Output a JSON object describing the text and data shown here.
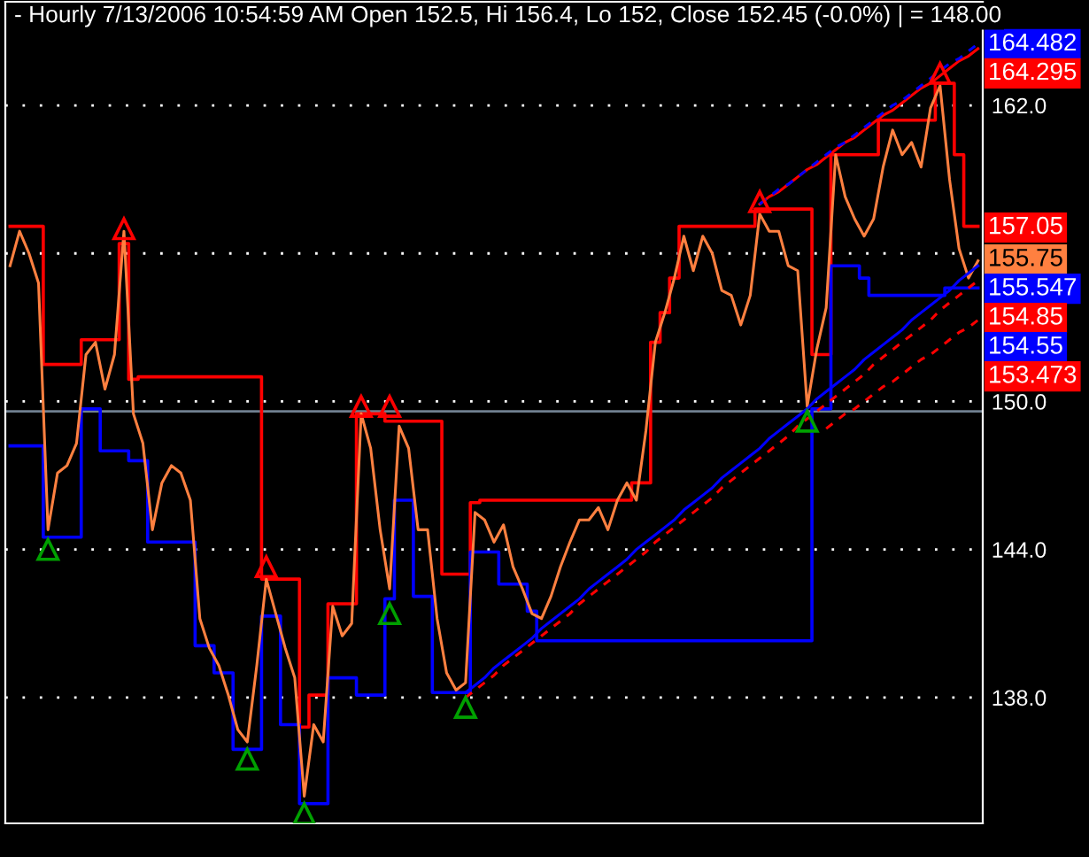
{
  "chart_data": {
    "type": "step",
    "title": "- Hourly 7/13/2006 10:54:59 AM Open 152.5, Hi 156.4, Lo 152, Close 152.45 (-0.0%) | = 148.00",
    "categories": [
      null,
      null,
      null,
      null,
      null,
      null,
      null,
      null,
      null,
      null,
      null,
      null,
      null,
      null,
      null,
      null,
      null,
      null,
      null,
      null,
      null,
      null,
      null,
      null,
      null,
      null,
      null,
      null,
      null,
      null,
      null,
      null,
      null,
      null,
      null,
      null,
      null,
      null,
      null,
      null,
      null,
      null,
      null,
      null,
      null,
      null,
      null,
      null,
      null,
      null,
      null,
      null,
      null,
      null,
      null,
      null,
      null,
      null,
      null,
      null,
      null,
      null,
      null,
      null,
      null,
      null,
      null,
      null,
      null,
      null,
      null,
      null,
      null,
      null,
      null,
      null,
      null,
      null,
      null,
      null,
      null,
      null,
      null,
      null,
      null,
      null,
      null,
      null,
      null,
      null,
      null,
      null,
      null,
      null,
      null,
      null,
      null,
      null,
      null,
      null,
      null,
      null,
      null
    ],
    "series": [
      {
        "color": "#ff0000",
        "values": [
          157.1,
          157.1,
          157.1,
          157.1,
          151.5,
          151.5,
          151.5,
          151.5,
          152.5,
          152.5,
          152.5,
          152.5,
          156.4,
          150.9,
          151.0,
          151.0,
          151.0,
          151.0,
          151.0,
          151.0,
          151.0,
          151.0,
          151.0,
          151.0,
          151.0,
          151.0,
          151.0,
          142.8,
          142.8,
          142.8,
          142.8,
          136.8,
          138.1,
          138.1,
          141.8,
          141.8,
          141.8,
          149.5,
          149.5,
          149.5,
          149.2,
          149.2,
          149.2,
          149.2,
          149.2,
          149.2,
          143.0,
          143.0,
          143.0,
          145.9,
          146.0,
          146.0,
          146.0,
          146.0,
          146.0,
          146.0,
          146.0,
          146.0,
          146.0,
          146.0,
          146.0,
          146.0,
          146.0,
          146.0,
          146.0,
          146.0,
          146.7,
          146.7,
          152.4,
          153.6,
          155.0,
          157.1,
          157.1,
          157.1,
          157.1,
          157.1,
          157.1,
          157.1,
          157.1,
          157.8,
          157.8,
          157.8,
          157.8,
          157.8,
          157.8,
          151.9,
          151.9,
          160.0,
          160.0,
          160.0,
          160.0,
          160.0,
          161.4,
          161.4,
          161.4,
          161.4,
          161.4,
          161.4,
          162.9,
          162.9,
          160.0,
          157.1,
          157.1
        ]
      },
      {
        "color": "#0000ff",
        "values": [
          148.2,
          148.2,
          148.2,
          148.2,
          144.5,
          144.5,
          144.5,
          144.5,
          149.7,
          149.7,
          148.0,
          148.0,
          148.0,
          147.6,
          147.6,
          144.3,
          144.3,
          144.3,
          144.3,
          144.3,
          140.1,
          140.1,
          139.0,
          139.0,
          135.9,
          135.9,
          135.9,
          141.3,
          141.3,
          136.9,
          136.9,
          133.7,
          133.7,
          133.7,
          138.8,
          138.8,
          138.8,
          138.1,
          138.1,
          138.1,
          142.0,
          146.0,
          146.0,
          142.1,
          142.1,
          138.2,
          138.2,
          138.2,
          138.2,
          143.9,
          143.9,
          143.9,
          142.6,
          142.6,
          142.6,
          141.5,
          140.3,
          140.3,
          140.3,
          140.3,
          140.3,
          140.3,
          140.3,
          140.3,
          140.3,
          140.3,
          140.3,
          140.3,
          140.3,
          140.3,
          140.3,
          140.3,
          140.3,
          140.3,
          140.3,
          140.3,
          140.3,
          140.3,
          140.3,
          140.3,
          140.3,
          140.3,
          140.3,
          140.3,
          140.3,
          149.7,
          149.7,
          155.5,
          155.5,
          155.5,
          155.0,
          154.3,
          154.3,
          154.3,
          154.3,
          154.3,
          154.3,
          154.3,
          154.3,
          154.6,
          154.6,
          154.6,
          154.6
        ]
      },
      {
        "type": "line",
        "color": "#ff8040",
        "values": [
          155.5,
          156.9,
          156.0,
          154.8,
          144.8,
          147.1,
          147.4,
          148.3,
          151.9,
          152.4,
          150.5,
          151.9,
          156.9,
          149.5,
          148.3,
          144.8,
          146.7,
          147.4,
          147.1,
          146.0,
          141.2,
          140.0,
          139.3,
          138.1,
          136.7,
          136.2,
          139.3,
          142.8,
          141.4,
          140.0,
          138.8,
          134.0,
          136.9,
          136.2,
          141.7,
          140.5,
          141.0,
          149.5,
          148.1,
          144.8,
          142.4,
          149.0,
          148.1,
          144.8,
          144.8,
          141.2,
          139.0,
          138.3,
          138.6,
          145.5,
          145.2,
          144.3,
          145.0,
          143.3,
          142.4,
          141.4,
          141.2,
          142.1,
          143.3,
          144.3,
          145.2,
          145.2,
          145.7,
          144.8,
          146.0,
          146.7,
          146.0,
          148.8,
          152.4,
          153.6,
          155.0,
          156.7,
          155.3,
          156.7,
          156.0,
          154.5,
          154.3,
          153.1,
          154.3,
          157.6,
          156.9,
          156.9,
          155.5,
          155.3,
          149.8,
          152.1,
          153.8,
          160.0,
          158.3,
          157.4,
          156.7,
          157.4,
          159.5,
          161.0,
          160.0,
          160.5,
          159.5,
          161.9,
          162.8,
          159.0,
          156.2,
          155.0,
          155.7
        ]
      },
      {
        "type": "line",
        "color": "#0000ff",
        "values": [
          null,
          null,
          null,
          null,
          null,
          null,
          null,
          null,
          null,
          null,
          null,
          null,
          null,
          null,
          null,
          null,
          null,
          null,
          null,
          null,
          null,
          null,
          null,
          null,
          null,
          null,
          null,
          null,
          null,
          null,
          null,
          null,
          null,
          null,
          null,
          null,
          null,
          null,
          null,
          null,
          null,
          null,
          null,
          null,
          null,
          null,
          null,
          null,
          138.2,
          138.5,
          138.8,
          139.2,
          139.5,
          139.8,
          140.1,
          140.4,
          140.8,
          141.1,
          141.4,
          141.7,
          142.0,
          142.4,
          142.7,
          143.0,
          143.3,
          143.6,
          144.0,
          144.3,
          144.6,
          144.9,
          145.2,
          145.6,
          145.9,
          146.2,
          146.5,
          146.9,
          147.2,
          147.5,
          147.8,
          148.1,
          148.5,
          148.8,
          149.1,
          149.4,
          149.7,
          150.1,
          150.4,
          150.7,
          151.0,
          151.3,
          151.7,
          152.0,
          152.3,
          152.6,
          152.9,
          153.3,
          153.6,
          153.9,
          154.2,
          154.5,
          154.9,
          155.2,
          155.5
        ]
      },
      {
        "type": "line",
        "color": "#ff0000",
        "line_style": "dashed",
        "values": [
          null,
          null,
          null,
          null,
          null,
          null,
          null,
          null,
          null,
          null,
          null,
          null,
          null,
          null,
          null,
          null,
          null,
          null,
          null,
          null,
          null,
          null,
          null,
          null,
          null,
          null,
          null,
          null,
          null,
          null,
          null,
          null,
          null,
          null,
          null,
          null,
          null,
          null,
          null,
          null,
          null,
          null,
          null,
          null,
          null,
          null,
          null,
          null,
          138.0,
          138.3,
          138.6,
          138.9,
          139.3,
          139.6,
          139.9,
          140.2,
          140.5,
          140.8,
          141.1,
          141.4,
          141.8,
          142.1,
          142.4,
          142.7,
          143.0,
          143.3,
          143.6,
          143.9,
          144.3,
          144.6,
          144.9,
          145.2,
          145.5,
          145.8,
          146.1,
          146.5,
          146.8,
          147.1,
          147.4,
          147.7,
          148.0,
          148.3,
          148.6,
          149.0,
          149.3,
          149.6,
          149.9,
          150.2,
          150.5,
          150.8,
          151.1,
          151.5,
          151.8,
          152.1,
          152.4,
          152.7,
          153.0,
          153.3,
          153.7,
          154.0,
          154.3,
          154.6,
          154.9
        ]
      },
      {
        "type": "line",
        "color": "#ff0000",
        "line_style": "dashed",
        "values": [
          null,
          null,
          null,
          null,
          null,
          null,
          null,
          null,
          null,
          null,
          null,
          null,
          null,
          null,
          null,
          null,
          null,
          null,
          null,
          null,
          null,
          null,
          null,
          null,
          null,
          null,
          null,
          null,
          null,
          null,
          null,
          null,
          null,
          null,
          null,
          null,
          null,
          null,
          null,
          null,
          null,
          null,
          null,
          null,
          null,
          null,
          null,
          null,
          null,
          null,
          null,
          null,
          null,
          null,
          null,
          null,
          null,
          null,
          null,
          null,
          null,
          null,
          null,
          null,
          null,
          null,
          null,
          null,
          null,
          null,
          null,
          null,
          null,
          null,
          null,
          null,
          null,
          null,
          null,
          null,
          null,
          null,
          null,
          null,
          null,
          null,
          148.9,
          149.2,
          149.5,
          149.7,
          150.0,
          150.3,
          150.6,
          150.8,
          151.1,
          151.4,
          151.7,
          151.9,
          152.2,
          152.5,
          152.8,
          153.0,
          153.3
        ]
      },
      {
        "type": "line",
        "color": "#ff0000",
        "values": [
          null,
          null,
          null,
          null,
          null,
          null,
          null,
          null,
          null,
          null,
          null,
          null,
          null,
          null,
          null,
          null,
          null,
          null,
          null,
          null,
          null,
          null,
          null,
          null,
          null,
          null,
          null,
          null,
          null,
          null,
          null,
          null,
          null,
          null,
          null,
          null,
          null,
          null,
          null,
          null,
          null,
          null,
          null,
          null,
          null,
          null,
          null,
          null,
          null,
          null,
          null,
          null,
          null,
          null,
          null,
          null,
          null,
          null,
          null,
          null,
          null,
          null,
          null,
          null,
          null,
          null,
          null,
          null,
          null,
          null,
          null,
          null,
          null,
          null,
          null,
          null,
          null,
          null,
          null,
          158.0,
          158.3,
          158.5,
          158.8,
          159.1,
          159.4,
          159.6,
          159.9,
          160.2,
          160.5,
          160.7,
          161.0,
          161.3,
          161.6,
          161.8,
          162.1,
          162.4,
          162.7,
          162.9,
          163.2,
          163.5,
          163.8,
          164.0,
          164.3
        ]
      },
      {
        "type": "line",
        "color": "#0000ff",
        "line_style": "dashed",
        "values": [
          null,
          null,
          null,
          null,
          null,
          null,
          null,
          null,
          null,
          null,
          null,
          null,
          null,
          null,
          null,
          null,
          null,
          null,
          null,
          null,
          null,
          null,
          null,
          null,
          null,
          null,
          null,
          null,
          null,
          null,
          null,
          null,
          null,
          null,
          null,
          null,
          null,
          null,
          null,
          null,
          null,
          null,
          null,
          null,
          null,
          null,
          null,
          null,
          null,
          null,
          null,
          null,
          null,
          null,
          null,
          null,
          null,
          null,
          null,
          null,
          null,
          null,
          null,
          null,
          null,
          null,
          null,
          null,
          null,
          null,
          null,
          null,
          null,
          null,
          null,
          null,
          null,
          null,
          null,
          158.0,
          158.3,
          158.6,
          158.8,
          159.1,
          159.4,
          159.7,
          160.0,
          160.3,
          160.5,
          160.8,
          161.1,
          161.4,
          161.7,
          162.0,
          162.2,
          162.5,
          162.8,
          163.1,
          163.4,
          163.7,
          163.9,
          164.2,
          164.5
        ]
      },
      {
        "type": "scatter",
        "color": "#ff0000",
        "marker": "triangle",
        "values": [
          null,
          null,
          null,
          null,
          null,
          null,
          null,
          null,
          null,
          null,
          null,
          null,
          157.0,
          null,
          null,
          null,
          null,
          null,
          null,
          null,
          null,
          null,
          null,
          null,
          null,
          null,
          null,
          143.3,
          null,
          null,
          null,
          null,
          null,
          null,
          null,
          null,
          null,
          149.8,
          null,
          null,
          149.8,
          null,
          null,
          null,
          null,
          null,
          null,
          null,
          null,
          null,
          null,
          null,
          null,
          null,
          null,
          null,
          null,
          null,
          null,
          null,
          null,
          null,
          null,
          null,
          null,
          null,
          null,
          null,
          null,
          null,
          null,
          null,
          null,
          null,
          null,
          null,
          null,
          null,
          null,
          158.1,
          null,
          null,
          null,
          null,
          null,
          null,
          null,
          null,
          null,
          null,
          null,
          null,
          null,
          null,
          null,
          null,
          null,
          null,
          163.3,
          null,
          null,
          null,
          null
        ]
      },
      {
        "type": "scatter",
        "color": "#00a000",
        "marker": "triangle",
        "values": [
          null,
          null,
          null,
          null,
          144.0,
          null,
          null,
          null,
          null,
          null,
          null,
          null,
          null,
          null,
          null,
          null,
          null,
          null,
          null,
          null,
          null,
          null,
          null,
          null,
          null,
          135.5,
          null,
          null,
          null,
          null,
          null,
          133.3,
          null,
          null,
          null,
          null,
          null,
          null,
          null,
          null,
          141.4,
          null,
          null,
          null,
          null,
          null,
          null,
          null,
          137.6,
          null,
          null,
          null,
          null,
          null,
          null,
          null,
          null,
          null,
          null,
          null,
          null,
          null,
          null,
          null,
          null,
          null,
          null,
          null,
          null,
          null,
          null,
          null,
          null,
          null,
          null,
          null,
          null,
          null,
          null,
          null,
          null,
          null,
          null,
          null,
          149.2,
          null,
          null,
          null,
          null,
          null,
          null,
          null,
          null,
          null,
          null,
          null,
          null,
          null,
          null,
          null,
          null,
          null,
          null
        ]
      }
    ],
    "ylim": [
      132.9,
      166.2
    ],
    "yticks": [
      {
        "value": 162,
        "label": "162.0"
      },
      {
        "value": 156,
        "label": null
      },
      {
        "value": 150,
        "label": "150.0"
      },
      {
        "value": 144,
        "label": "144.0"
      },
      {
        "value": 138,
        "label": "138.0"
      }
    ],
    "grid": "y",
    "legend": false,
    "tick_labels": "y",
    "ref_lines": [
      {
        "axis": "y",
        "value": 149.6,
        "color": "#708090"
      }
    ],
    "annotations": [
      "164.482",
      "164.295",
      "157.05",
      "155.75",
      "155.547",
      "154.85",
      "154.55",
      "153.473"
    ]
  }
}
